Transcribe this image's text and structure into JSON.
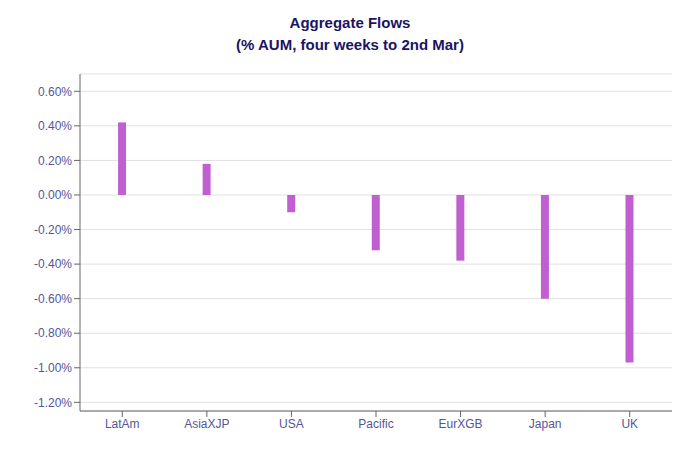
{
  "chart_data": {
    "type": "bar",
    "title": "Aggregate Flows",
    "subtitle": "(% AUM, four weeks to 2nd Mar)",
    "categories": [
      "LatAm",
      "AsiaXJP",
      "USA",
      "Pacific",
      "EurXGB",
      "Japan",
      "UK"
    ],
    "values": [
      0.42,
      0.18,
      -0.1,
      -0.32,
      -0.38,
      -0.6,
      -0.97
    ],
    "color": "#c060d0",
    "ylim": [
      -1.25,
      0.7
    ],
    "yticks": [
      {
        "value": -1.2,
        "label": "-1.20%"
      },
      {
        "value": -1.0,
        "label": "-1.00%"
      },
      {
        "value": -0.8,
        "label": "-0.80%"
      },
      {
        "value": -0.6,
        "label": "-0.60%"
      },
      {
        "value": -0.4,
        "label": "-0.40%"
      },
      {
        "value": -0.2,
        "label": "-0.20%"
      },
      {
        "value": 0.0,
        "label": "0.00%"
      },
      {
        "value": 0.2,
        "label": "0.20%"
      },
      {
        "value": 0.4,
        "label": "0.40%"
      },
      {
        "value": 0.6,
        "label": "0.60%"
      }
    ],
    "grid": true
  }
}
